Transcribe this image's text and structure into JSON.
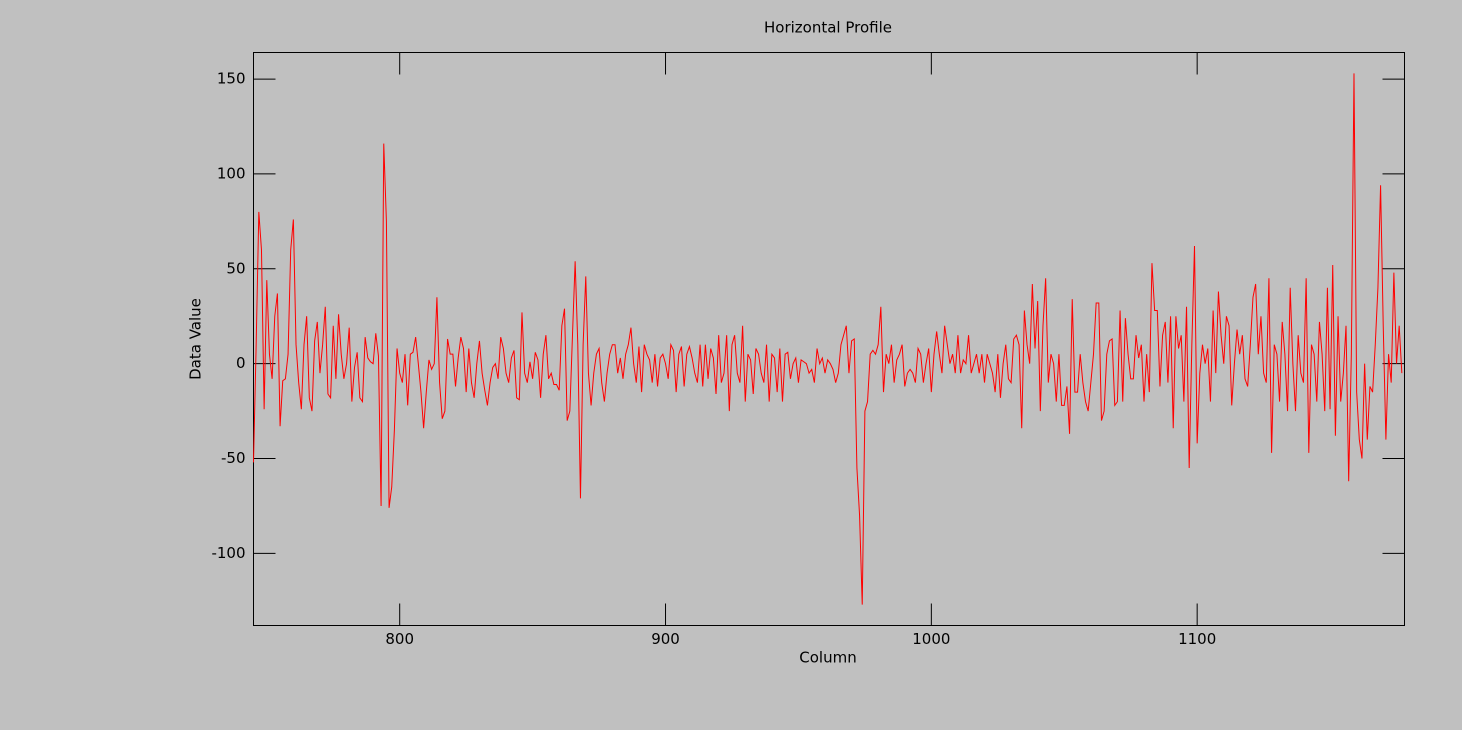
{
  "chart_data": {
    "type": "line",
    "title": "Horizontal Profile",
    "x_label": "Column",
    "y_label": "Data Value",
    "color": "#ff0000",
    "xlim": [
      745,
      1178
    ],
    "ylim": [
      -138,
      164
    ],
    "xticks": [
      800,
      900,
      1000,
      1100
    ],
    "yticks": [
      -100,
      -50,
      0,
      50,
      100,
      150
    ],
    "x": [
      745,
      746,
      747,
      748,
      749,
      750,
      751,
      752,
      753,
      754,
      755,
      756,
      757,
      758,
      759,
      760,
      761,
      762,
      763,
      764,
      765,
      766,
      767,
      768,
      769,
      770,
      771,
      772,
      773,
      774,
      775,
      776,
      777,
      778,
      779,
      780,
      781,
      782,
      783,
      784,
      785,
      786,
      787,
      788,
      789,
      790,
      791,
      792,
      793,
      794,
      795,
      796,
      797,
      798,
      799,
      800,
      801,
      802,
      803,
      804,
      805,
      806,
      807,
      808,
      809,
      810,
      811,
      812,
      813,
      814,
      815,
      816,
      817,
      818,
      819,
      820,
      821,
      822,
      823,
      824,
      825,
      826,
      827,
      828,
      829,
      830,
      831,
      832,
      833,
      834,
      835,
      836,
      837,
      838,
      839,
      840,
      841,
      842,
      843,
      844,
      845,
      846,
      847,
      848,
      849,
      850,
      851,
      852,
      853,
      854,
      855,
      856,
      857,
      858,
      859,
      860,
      861,
      862,
      863,
      864,
      865,
      866,
      867,
      868,
      869,
      870,
      871,
      872,
      873,
      874,
      875,
      876,
      877,
      878,
      879,
      880,
      881,
      882,
      883,
      884,
      885,
      886,
      887,
      888,
      889,
      890,
      891,
      892,
      893,
      894,
      895,
      896,
      897,
      898,
      899,
      900,
      901,
      902,
      903,
      904,
      905,
      906,
      907,
      908,
      909,
      910,
      911,
      912,
      913,
      914,
      915,
      916,
      917,
      918,
      919,
      920,
      921,
      922,
      923,
      924,
      925,
      926,
      927,
      928,
      929,
      930,
      931,
      932,
      933,
      934,
      935,
      936,
      937,
      938,
      939,
      940,
      941,
      942,
      943,
      944,
      945,
      946,
      947,
      948,
      949,
      950,
      951,
      952,
      953,
      954,
      955,
      956,
      957,
      958,
      959,
      960,
      961,
      962,
      963,
      964,
      965,
      966,
      967,
      968,
      969,
      970,
      971,
      972,
      973,
      974,
      975,
      976,
      977,
      978,
      979,
      980,
      981,
      982,
      983,
      984,
      985,
      986,
      987,
      988,
      989,
      990,
      991,
      992,
      993,
      994,
      995,
      996,
      997,
      998,
      999,
      1000,
      1001,
      1002,
      1003,
      1004,
      1005,
      1006,
      1007,
      1008,
      1009,
      1010,
      1011,
      1012,
      1013,
      1014,
      1015,
      1016,
      1017,
      1018,
      1019,
      1020,
      1021,
      1022,
      1023,
      1024,
      1025,
      1026,
      1027,
      1028,
      1029,
      1030,
      1031,
      1032,
      1033,
      1034,
      1035,
      1036,
      1037,
      1038,
      1039,
      1040,
      1041,
      1042,
      1043,
      1044,
      1045,
      1046,
      1047,
      1048,
      1049,
      1050,
      1051,
      1052,
      1053,
      1054,
      1055,
      1056,
      1057,
      1058,
      1059,
      1060,
      1061,
      1062,
      1063,
      1064,
      1065,
      1066,
      1067,
      1068,
      1069,
      1070,
      1071,
      1072,
      1073,
      1074,
      1075,
      1076,
      1077,
      1078,
      1079,
      1080,
      1081,
      1082,
      1083,
      1084,
      1085,
      1086,
      1087,
      1088,
      1089,
      1090,
      1091,
      1092,
      1093,
      1094,
      1095,
      1096,
      1097,
      1098,
      1099,
      1100,
      1101,
      1102,
      1103,
      1104,
      1105,
      1106,
      1107,
      1108,
      1109,
      1110,
      1111,
      1112,
      1113,
      1114,
      1115,
      1116,
      1117,
      1118,
      1119,
      1120,
      1121,
      1122,
      1123,
      1124,
      1125,
      1126,
      1127,
      1128,
      1129,
      1130,
      1131,
      1132,
      1133,
      1134,
      1135,
      1136,
      1137,
      1138,
      1139,
      1140,
      1141,
      1142,
      1143,
      1144,
      1145,
      1146,
      1147,
      1148,
      1149,
      1150,
      1151,
      1152,
      1153,
      1154,
      1155,
      1156,
      1157,
      1158,
      1159,
      1160,
      1161,
      1162,
      1163,
      1164,
      1165,
      1166,
      1167,
      1168,
      1169,
      1170,
      1171,
      1172,
      1173,
      1174,
      1175,
      1176,
      1177
    ],
    "values": [
      -52,
      10,
      80,
      60,
      -24,
      44,
      5,
      -8,
      25,
      37,
      -33,
      -9,
      -8,
      5,
      60,
      76,
      10,
      -10,
      -24,
      10,
      25,
      -18,
      -25,
      12,
      22,
      -5,
      10,
      30,
      -16,
      -18,
      20,
      -8,
      26,
      5,
      -8,
      0,
      19,
      -20,
      -2,
      6,
      -18,
      -20,
      14,
      3,
      1,
      0,
      16,
      4,
      -75,
      116,
      75,
      -76,
      -65,
      -35,
      8,
      -5,
      -10,
      5,
      -22,
      5,
      6,
      14,
      0,
      -15,
      -34,
      -15,
      2,
      -3,
      0,
      35,
      -10,
      -29,
      -25,
      13,
      5,
      5,
      -12,
      3,
      14,
      8,
      -15,
      8,
      -10,
      -18,
      0,
      12,
      -5,
      -14,
      -22,
      -10,
      -2,
      0,
      -8,
      14,
      8,
      -5,
      -10,
      3,
      7,
      -18,
      -19,
      27,
      -5,
      -10,
      1,
      -8,
      6,
      2,
      -18,
      5,
      15,
      -8,
      -5,
      -11,
      -11,
      -14,
      20,
      29,
      -30,
      -25,
      15,
      54,
      10,
      -71,
      10,
      46,
      -5,
      -22,
      -5,
      5,
      8,
      -10,
      -20,
      -5,
      5,
      10,
      10,
      -5,
      3,
      -8,
      5,
      10,
      19,
      0,
      -10,
      9,
      -15,
      10,
      5,
      2,
      -10,
      5,
      -12,
      3,
      5,
      0,
      -8,
      10,
      7,
      -15,
      5,
      9,
      -12,
      5,
      9,
      3,
      -5,
      -10,
      10,
      -12,
      10,
      -8,
      8,
      3,
      -16,
      15,
      -10,
      -5,
      15,
      -25,
      10,
      15,
      -5,
      -10,
      20,
      -20,
      5,
      2,
      -16,
      8,
      5,
      -5,
      -10,
      10,
      -20,
      5,
      3,
      -15,
      8,
      -20,
      5,
      6,
      -8,
      0,
      3,
      -10,
      2,
      1,
      0,
      -5,
      -3,
      -10,
      8,
      0,
      3,
      -5,
      2,
      0,
      -3,
      -10,
      -5,
      10,
      15,
      20,
      -5,
      12,
      13,
      -55,
      -80,
      -127,
      -25,
      -20,
      5,
      7,
      5,
      10,
      30,
      -15,
      5,
      0,
      10,
      -10,
      2,
      5,
      10,
      -12,
      -5,
      -3,
      -5,
      -10,
      8,
      5,
      -10,
      0,
      8,
      -15,
      5,
      17,
      5,
      -5,
      20,
      10,
      0,
      5,
      -5,
      15,
      -5,
      2,
      0,
      15,
      -5,
      0,
      5,
      -5,
      5,
      -10,
      5,
      0,
      -5,
      -15,
      5,
      -18,
      0,
      10,
      -8,
      -10,
      13,
      15,
      10,
      -34,
      28,
      10,
      0,
      42,
      8,
      33,
      -25,
      20,
      45,
      -10,
      5,
      0,
      -20,
      5,
      -22,
      -22,
      -12,
      -37,
      34,
      -15,
      -15,
      5,
      -10,
      -20,
      -25,
      -10,
      5,
      32,
      32,
      -30,
      -25,
      5,
      12,
      13,
      -22,
      -20,
      28,
      -20,
      24,
      5,
      -8,
      -8,
      15,
      3,
      10,
      -20,
      5,
      -15,
      53,
      28,
      28,
      -12,
      15,
      22,
      -10,
      25,
      -34,
      25,
      8,
      15,
      -20,
      30,
      -55,
      10,
      62,
      -42,
      -5,
      10,
      0,
      8,
      -20,
      28,
      -5,
      38,
      15,
      0,
      25,
      20,
      -22,
      0,
      18,
      5,
      15,
      -8,
      -12,
      10,
      35,
      42,
      5,
      25,
      -5,
      -10,
      45,
      -47,
      10,
      5,
      -20,
      22,
      5,
      -25,
      40,
      0,
      -25,
      15,
      -5,
      -10,
      45,
      -47,
      10,
      5,
      -20,
      22,
      5,
      -25,
      40,
      -24,
      52,
      -38,
      25,
      -20,
      -5,
      20,
      -62,
      5,
      153,
      -15,
      -40,
      -50,
      0,
      -40,
      -12,
      -15,
      10,
      40,
      94,
      20,
      -40,
      5,
      -10,
      48,
      0,
      20,
      -5
    ]
  }
}
